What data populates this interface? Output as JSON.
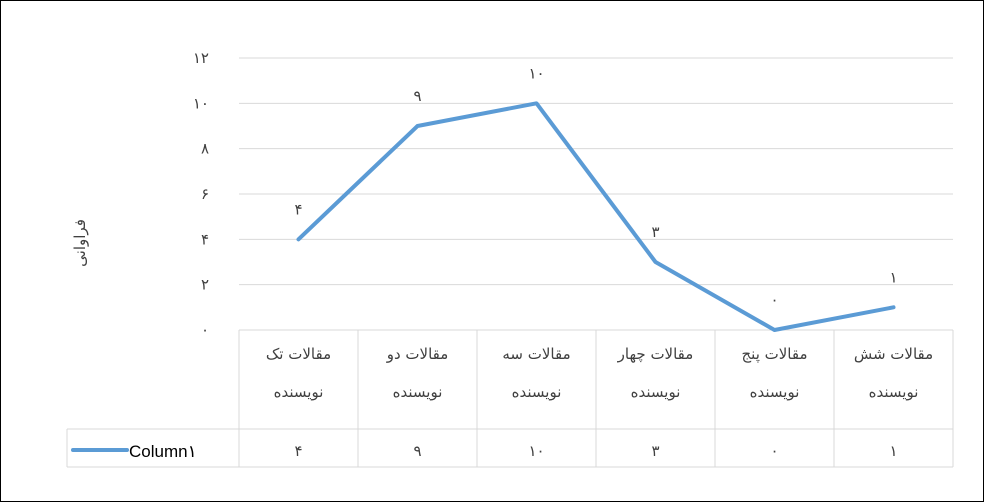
{
  "chart_data": {
    "type": "line",
    "title": "",
    "xlabel": "",
    "ylabel": "فراوانی",
    "categories": [
      [
        "مقالات تک",
        "نویسنده"
      ],
      [
        "مقالات دو",
        "نویسنده"
      ],
      [
        "مقالات سه",
        "نویسنده"
      ],
      [
        "مقالات چهار",
        "نویسنده"
      ],
      [
        "مقالات پنج",
        "نویسنده"
      ],
      [
        "مقالات شش",
        "نویسنده"
      ]
    ],
    "series": [
      {
        "name": "Column۱",
        "values": [
          4,
          9,
          10,
          3,
          0,
          1
        ],
        "value_labels": [
          "۴",
          "۹",
          "۱۰",
          "۳",
          "۰",
          "۱"
        ],
        "color": "#5B9BD5"
      }
    ],
    "ylim": [
      0,
      12
    ],
    "yticks": [
      0,
      2,
      4,
      6,
      8,
      10,
      12
    ],
    "ytick_labels": [
      "۰",
      "۲",
      "۴",
      "۶",
      "۸",
      "۱۰",
      "۱۲"
    ],
    "grid": true,
    "legend": "data-table-left",
    "data_table": true
  }
}
